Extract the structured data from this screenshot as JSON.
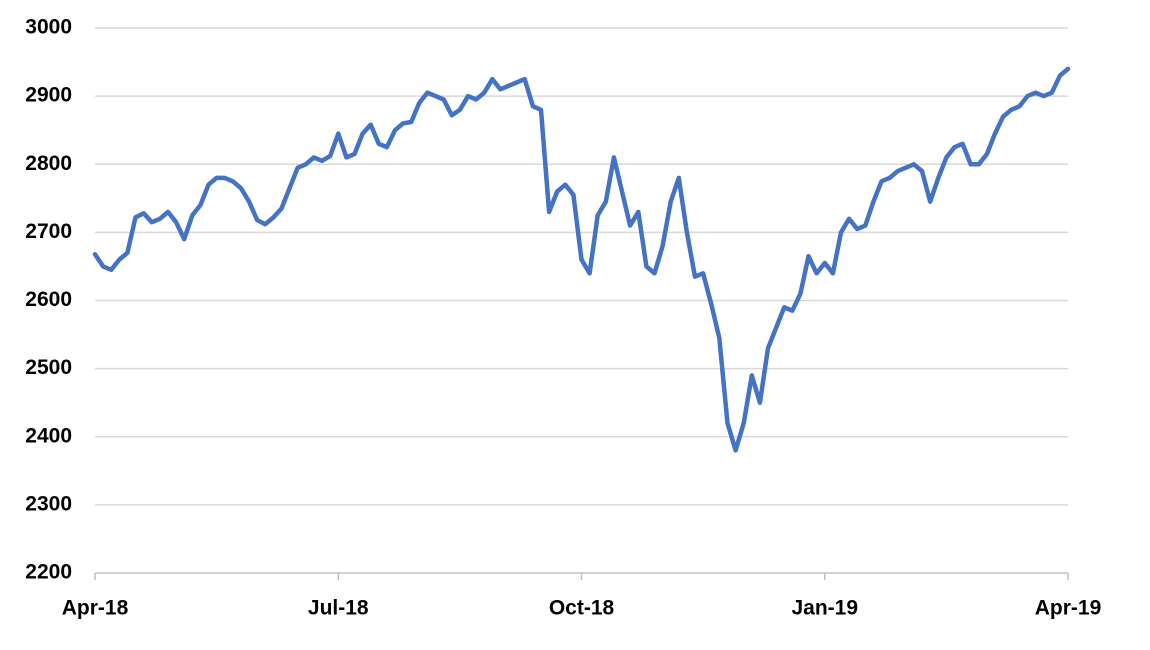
{
  "chart_data": {
    "type": "line",
    "categories": [
      "Apr-18",
      null,
      null,
      null,
      null,
      null,
      null,
      null,
      null,
      null,
      null,
      null,
      null,
      null,
      null,
      null,
      null,
      null,
      null,
      null,
      null,
      null,
      null,
      null,
      null,
      null,
      null,
      null,
      null,
      null,
      "Jul-18",
      null,
      null,
      null,
      null,
      null,
      null,
      null,
      null,
      null,
      null,
      null,
      null,
      null,
      null,
      null,
      null,
      null,
      null,
      null,
      null,
      null,
      null,
      null,
      null,
      null,
      null,
      null,
      null,
      null,
      "Oct-18",
      null,
      null,
      null,
      null,
      null,
      null,
      null,
      null,
      null,
      null,
      null,
      null,
      null,
      null,
      null,
      null,
      null,
      null,
      null,
      null,
      null,
      null,
      null,
      null,
      null,
      null,
      null,
      null,
      null,
      "Jan-19",
      null,
      null,
      null,
      null,
      null,
      null,
      null,
      null,
      null,
      null,
      null,
      null,
      null,
      null,
      null,
      null,
      null,
      null,
      null,
      null,
      null,
      null,
      null,
      null,
      null,
      null,
      null,
      null,
      null,
      "Apr-19"
    ],
    "values": [
      2668,
      2650,
      2645,
      2660,
      2670,
      2722,
      2728,
      2715,
      2720,
      2730,
      2715,
      2690,
      2725,
      2740,
      2770,
      2780,
      2780,
      2775,
      2765,
      2745,
      2718,
      2712,
      2722,
      2735,
      2765,
      2795,
      2800,
      2810,
      2805,
      2812,
      2845,
      2810,
      2815,
      2845,
      2858,
      2830,
      2825,
      2850,
      2860,
      2862,
      2890,
      2905,
      2900,
      2895,
      2872,
      2880,
      2900,
      2895,
      2905,
      2925,
      2910,
      2915,
      2920,
      2925,
      2885,
      2880,
      2730,
      2760,
      2770,
      2755,
      2660,
      2640,
      2725,
      2745,
      2810,
      2760,
      2710,
      2730,
      2650,
      2640,
      2680,
      2745,
      2780,
      2700,
      2635,
      2640,
      2595,
      2545,
      2420,
      2380,
      2420,
      2490,
      2450,
      2530,
      2560,
      2590,
      2585,
      2610,
      2665,
      2640,
      2655,
      2640,
      2700,
      2720,
      2705,
      2710,
      2745,
      2775,
      2780,
      2790,
      2795,
      2800,
      2790,
      2745,
      2780,
      2810,
      2825,
      2830,
      2800,
      2800,
      2815,
      2845,
      2870,
      2880,
      2885,
      2900,
      2905,
      2900,
      2905,
      2930,
      2940
    ],
    "color": "#4472c4",
    "ylim": [
      2200,
      3000
    ],
    "yticks": [
      2200,
      2300,
      2400,
      2500,
      2600,
      2700,
      2800,
      2900,
      3000
    ],
    "grid": true
  }
}
